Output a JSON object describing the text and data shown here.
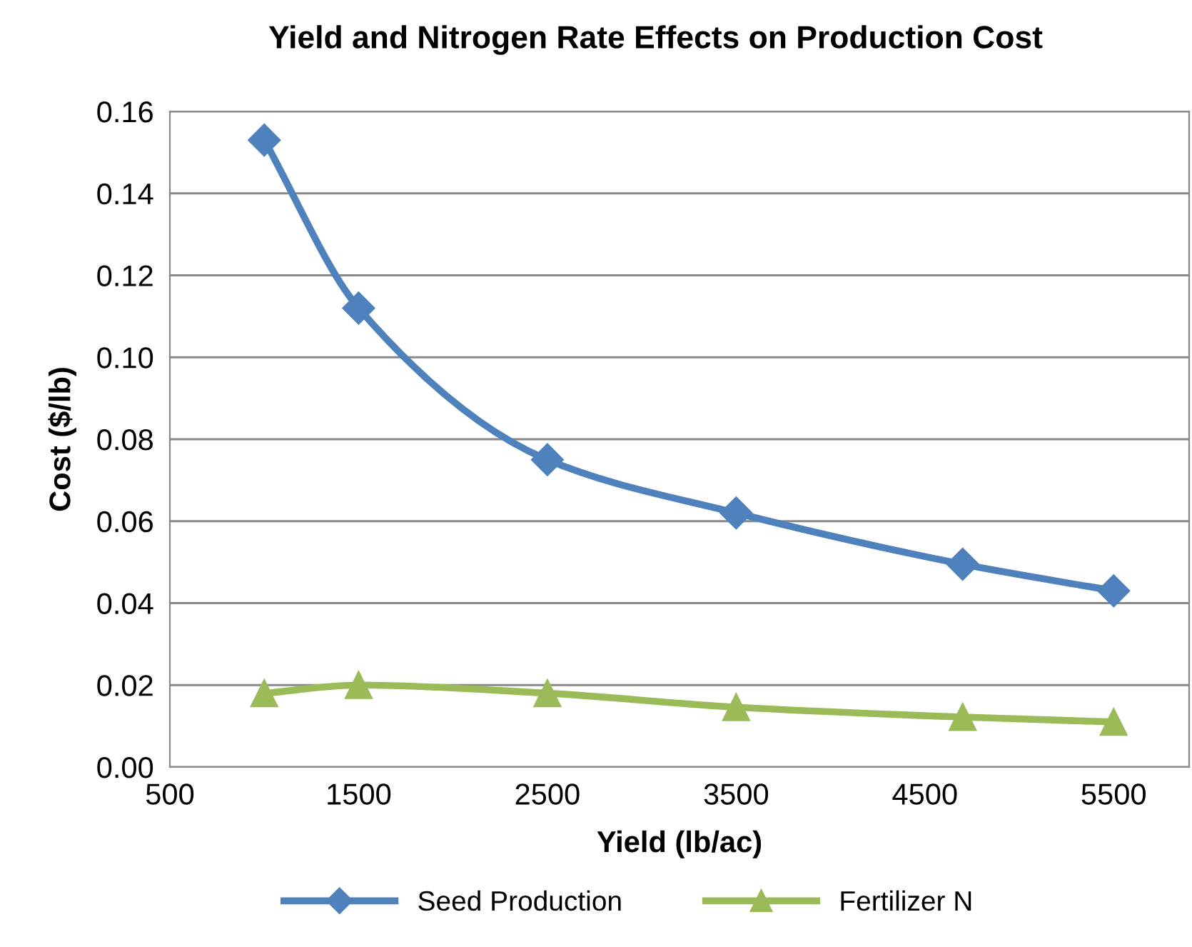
{
  "chart_data": {
    "type": "line",
    "title": "Yield and Nitrogen Rate Effects on Production Cost",
    "xlabel": "Yield (lb/ac)",
    "ylabel": "Cost ($/lb)",
    "x": [
      1000,
      1500,
      2500,
      3500,
      4700,
      5500
    ],
    "series": [
      {
        "name": "Seed Production",
        "color": "#4f81bd",
        "marker": "diamond",
        "values": [
          0.153,
          0.112,
          0.075,
          0.062,
          0.0495,
          0.043
        ]
      },
      {
        "name": "Fertilizer N",
        "color": "#9bbb59",
        "marker": "triangle",
        "values": [
          0.018,
          0.02,
          0.018,
          0.0146,
          0.0122,
          0.011
        ]
      }
    ],
    "xlim": [
      500,
      5900
    ],
    "xticks": [
      500,
      1500,
      2500,
      3500,
      4500,
      5500
    ],
    "ylim": [
      0,
      0.16
    ],
    "yticks": [
      {
        "value": 0,
        "label": "0.00"
      },
      {
        "value": 0.02,
        "label": "0.02"
      },
      {
        "value": 0.04,
        "label": "0.04"
      },
      {
        "value": 0.06,
        "label": "0.06"
      },
      {
        "value": 0.08,
        "label": "0.08"
      },
      {
        "value": 0.1,
        "label": "0.10"
      },
      {
        "value": 0.12,
        "label": "0.12"
      },
      {
        "value": 0.14,
        "label": "0.14"
      },
      {
        "value": 0.16,
        "label": "0.16"
      }
    ],
    "grid": "y",
    "legend": "bottom",
    "line_style": "solid"
  }
}
